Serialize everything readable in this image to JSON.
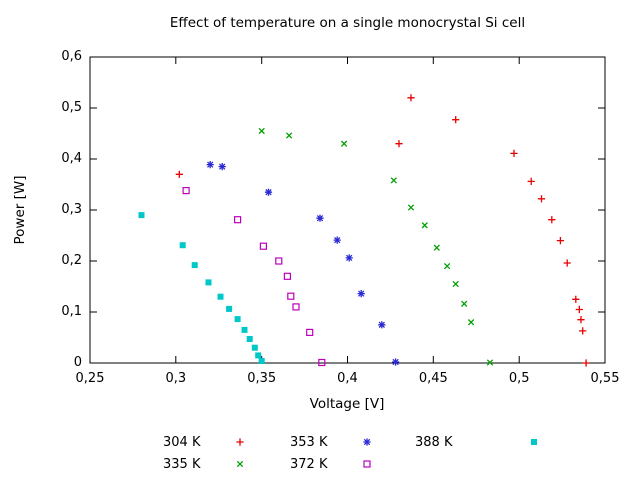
{
  "title": "Effect of temperature on a single monocrystal Si cell",
  "chart_data": {
    "type": "scatter",
    "title": "Effect of temperature on a single monocrystal Si cell",
    "xlabel": "Voltage [V]",
    "ylabel": "Power [W]",
    "xlim": [
      0.25,
      0.55
    ],
    "ylim": [
      0,
      0.6
    ],
    "x_tick_values": [
      0.25,
      0.3,
      0.35,
      0.4,
      0.45,
      0.5,
      0.55
    ],
    "x_tick_labels": [
      "0,25",
      "0,3",
      "0,35",
      "0,4",
      "0,45",
      "0,5",
      "0,55"
    ],
    "y_tick_values": [
      0,
      0.1,
      0.2,
      0.3,
      0.4,
      0.5,
      0.6
    ],
    "y_tick_labels": [
      "0",
      "0,1",
      "0,2",
      "0,3",
      "0,4",
      "0,5",
      "0,6"
    ],
    "grid": false,
    "legend_position": "bottom",
    "decimal_separator": ",",
    "axis_color": "#000000",
    "background": "#ffffff",
    "series": [
      {
        "name": "304 K",
        "marker": "plus",
        "color": "#e60000",
        "points": [
          [
            0.302,
            0.37
          ],
          [
            0.43,
            0.43
          ],
          [
            0.437,
            0.52
          ],
          [
            0.463,
            0.477
          ],
          [
            0.497,
            0.411
          ],
          [
            0.507,
            0.356
          ],
          [
            0.513,
            0.322
          ],
          [
            0.519,
            0.281
          ],
          [
            0.524,
            0.24
          ],
          [
            0.528,
            0.196
          ],
          [
            0.533,
            0.125
          ],
          [
            0.535,
            0.105
          ],
          [
            0.536,
            0.085
          ],
          [
            0.537,
            0.063
          ],
          [
            0.539,
            0.0
          ]
        ]
      },
      {
        "name": "335 K",
        "marker": "cross",
        "color": "#00a000",
        "points": [
          [
            0.35,
            0.455
          ],
          [
            0.366,
            0.446
          ],
          [
            0.398,
            0.43
          ],
          [
            0.427,
            0.358
          ],
          [
            0.437,
            0.305
          ],
          [
            0.445,
            0.27
          ],
          [
            0.452,
            0.226
          ],
          [
            0.458,
            0.19
          ],
          [
            0.463,
            0.155
          ],
          [
            0.468,
            0.116
          ],
          [
            0.472,
            0.08
          ],
          [
            0.483,
            0.001
          ]
        ]
      },
      {
        "name": "353 K",
        "marker": "asterisk",
        "color": "#2a2ad4",
        "points": [
          [
            0.32,
            0.389
          ],
          [
            0.327,
            0.385
          ],
          [
            0.354,
            0.335
          ],
          [
            0.384,
            0.284
          ],
          [
            0.394,
            0.241
          ],
          [
            0.401,
            0.206
          ],
          [
            0.408,
            0.136
          ],
          [
            0.42,
            0.075
          ],
          [
            0.428,
            0.002
          ]
        ]
      },
      {
        "name": "372 K",
        "marker": "open-square",
        "color": "#bd00bd",
        "points": [
          [
            0.306,
            0.338
          ],
          [
            0.336,
            0.281
          ],
          [
            0.351,
            0.229
          ],
          [
            0.36,
            0.2
          ],
          [
            0.365,
            0.17
          ],
          [
            0.367,
            0.131
          ],
          [
            0.37,
            0.11
          ],
          [
            0.378,
            0.06
          ],
          [
            0.385,
            0.001
          ]
        ]
      },
      {
        "name": "388 K",
        "marker": "filled-square",
        "color": "#00c8c8",
        "points": [
          [
            0.28,
            0.29
          ],
          [
            0.304,
            0.231
          ],
          [
            0.311,
            0.192
          ],
          [
            0.319,
            0.158
          ],
          [
            0.326,
            0.13
          ],
          [
            0.331,
            0.106
          ],
          [
            0.336,
            0.086
          ],
          [
            0.34,
            0.065
          ],
          [
            0.343,
            0.047
          ],
          [
            0.346,
            0.03
          ],
          [
            0.348,
            0.015
          ],
          [
            0.35,
            0.004
          ]
        ]
      }
    ],
    "legend_columns": [
      [
        0,
        1
      ],
      [
        2,
        3
      ],
      [
        4
      ]
    ]
  }
}
